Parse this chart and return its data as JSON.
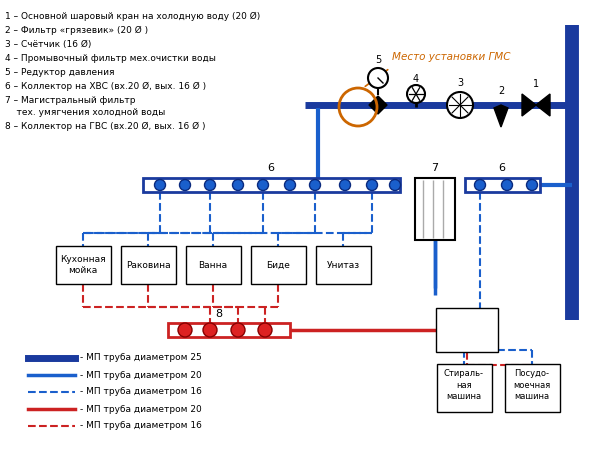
{
  "bg_color": "#ffffff",
  "blue_thick": "#1a3a9e",
  "blue_med": "#1a5fcc",
  "blue_dash": "#1a5fcc",
  "red_solid": "#cc2222",
  "red_dash": "#cc2222",
  "gmc_label": "Место установки ГМС",
  "labels_left": [
    "1 – Основной шаровый кран на холодную воду (20 Ø)",
    "2 – Фильтр «грязевик» (20 Ø )",
    "3 – Счётчик (16 Ø)",
    "4 – Промывочный фильтр мех.очистки воды",
    "5 – Редуктор давления",
    "6 – Коллектор на ХВС (вх.20 Ø, вых. 16 Ø )",
    "7 – Магистральный фильтр",
    "    тех. умягчения холодной воды",
    "8 – Коллектор на ГВС (вх.20 Ø, вых. 16 Ø )"
  ],
  "appliances": [
    "Кухонная\nмойка",
    "Раковина",
    "Ванна",
    "Биде",
    "Унитаз"
  ],
  "legend_items": [
    {
      "label": "- МП труба диаметром 25",
      "color": "#1a3a9e",
      "lw": 5,
      "ls": "solid"
    },
    {
      "label": "- МП труба диаметром 20",
      "color": "#1a5fcc",
      "lw": 2.5,
      "ls": "solid"
    },
    {
      "label": "- МП труба диаметром 16",
      "color": "#1a5fcc",
      "lw": 1.5,
      "ls": "dashed"
    },
    {
      "label": "- МП труба диаметром 20",
      "color": "#cc2222",
      "lw": 2.5,
      "ls": "solid"
    },
    {
      "label": "- МП труба диаметром 16",
      "color": "#cc2222",
      "lw": 1.5,
      "ls": "dashed"
    }
  ]
}
